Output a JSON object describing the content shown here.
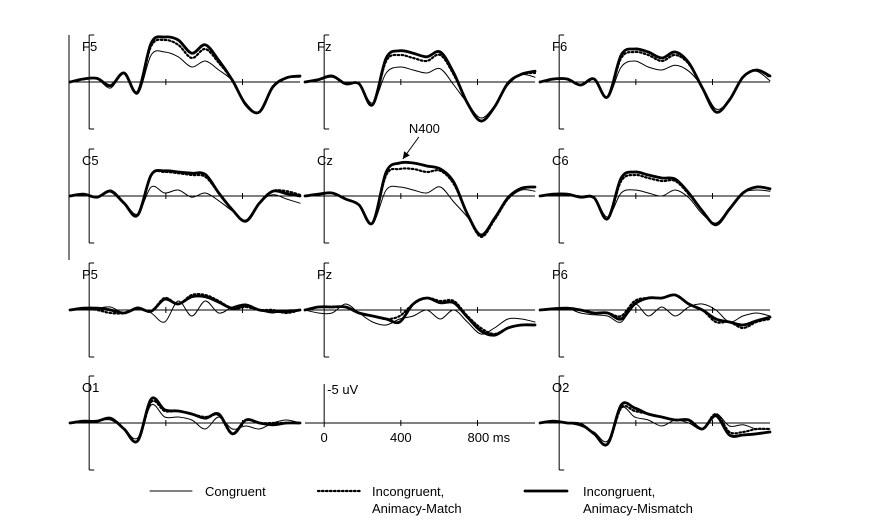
{
  "chart_data": {
    "type": "line",
    "x_unit": "ms",
    "x_range": [
      -100,
      1100
    ],
    "y_unit": "uV",
    "y_inverted": true,
    "y_scale_label": "-5 uV",
    "x_ticks": [
      {
        "value": 0,
        "label": "0"
      },
      {
        "value": 400,
        "label": "400"
      },
      {
        "value": 800,
        "label": "800 ms"
      }
    ],
    "annotation": {
      "electrode": "Cz",
      "label": "N400",
      "x": 400,
      "y": -5.5
    },
    "legend": {
      "placement": "bottom",
      "entries": [
        {
          "style": "thin",
          "label_lines": [
            "Congruent"
          ]
        },
        {
          "style": "dotted",
          "label_lines": [
            "Incongruent,",
            "Animacy-Match"
          ]
        },
        {
          "style": "thick",
          "label_lines": [
            "Incongruent,",
            "Animacy-Mismatch"
          ]
        }
      ]
    },
    "series_order": [
      "Congruent",
      "Incongruent, Animacy-Match",
      "Incongruent, Animacy-Mismatch"
    ],
    "panels": [
      {
        "label": "F5",
        "row": 0,
        "col": 0,
        "series": [
          [
            0,
            -0.4,
            -0.5,
            1,
            -1.5,
            2,
            -4.5,
            -5,
            -4.2,
            -2.5,
            -3.5,
            -2,
            -0.2,
            3.5,
            5,
            1,
            -0.6,
            -0.8
          ],
          [
            0,
            -0.5,
            -0.6,
            0.6,
            -1.5,
            1.7,
            -6,
            -7,
            -6.2,
            -4,
            -5.5,
            -3.2,
            -0.3,
            3.8,
            5,
            0.8,
            -0.7,
            -1
          ],
          [
            0,
            -0.5,
            -0.6,
            0.6,
            -1.5,
            1.7,
            -6.5,
            -7.5,
            -7,
            -4.8,
            -6.2,
            -3.6,
            -0.3,
            3.8,
            5,
            0.8,
            -0.7,
            -1
          ]
        ]
      },
      {
        "label": "Fz",
        "row": 0,
        "col": 1,
        "series": [
          [
            0,
            -0.3,
            -0.8,
            0.2,
            0.3,
            3.5,
            -1.5,
            -2.5,
            -2,
            -1.5,
            -2.2,
            0.5,
            3.5,
            6,
            4,
            0.5,
            -1.2,
            -0.8
          ],
          [
            0,
            -0.4,
            -1,
            0.3,
            0.3,
            3.8,
            -3.5,
            -4.5,
            -4,
            -3.5,
            -4.5,
            -1.2,
            3.5,
            6.5,
            4.2,
            0.2,
            -1.3,
            -1.5
          ],
          [
            0,
            -0.4,
            -1,
            0.3,
            0.3,
            3.8,
            -4,
            -5.2,
            -4.8,
            -4.2,
            -5,
            -1.5,
            3.5,
            6.5,
            4.2,
            0.2,
            -1.3,
            -1.8
          ]
        ]
      },
      {
        "label": "F6",
        "row": 0,
        "col": 2,
        "series": [
          [
            0,
            -0.4,
            -0.4,
            0.4,
            -0.5,
            2.5,
            -2.5,
            -3.5,
            -2.5,
            -2,
            -2.8,
            -1.8,
            0.8,
            4.5,
            3,
            -1,
            -1.8,
            -0.2
          ],
          [
            0,
            -0.5,
            -0.5,
            0.5,
            -0.5,
            2.5,
            -4,
            -5,
            -4.5,
            -3.5,
            -4.5,
            -3,
            1,
            5,
            3,
            -0.8,
            -2,
            -0.8
          ],
          [
            0,
            -0.5,
            -0.5,
            0.5,
            -0.5,
            2.5,
            -4.5,
            -5.5,
            -5,
            -4,
            -5,
            -3.2,
            1,
            5,
            3,
            -0.8,
            -2,
            -1
          ]
        ]
      },
      {
        "label": "C5",
        "row": 1,
        "col": 0,
        "series": [
          [
            0,
            -0.2,
            0.3,
            -1,
            1,
            3,
            -1.5,
            -0.5,
            -1,
            0.2,
            -0.5,
            0.8,
            2.5,
            4,
            1,
            -0.2,
            0.5,
            1.2
          ],
          [
            0,
            -0.3,
            0.2,
            -0.8,
            1.2,
            3.2,
            -3.5,
            -4,
            -3.8,
            -3.5,
            -3.2,
            -0.5,
            2.3,
            4.2,
            1.2,
            -0.8,
            -0.8,
            -0.2
          ],
          [
            0,
            -0.3,
            0.2,
            -0.8,
            1.2,
            3.2,
            -3.5,
            -4.2,
            -4,
            -3.8,
            -3.6,
            -0.5,
            2.3,
            4.2,
            1.2,
            -0.8,
            -0.4,
            0
          ]
        ]
      },
      {
        "label": "Cz",
        "row": 1,
        "col": 1,
        "series": [
          [
            0,
            -0.3,
            -0.5,
            0.5,
            1.5,
            4.5,
            -1,
            -1.5,
            -1,
            -0.5,
            -1.5,
            1,
            3.5,
            6.5,
            3.5,
            0.5,
            -1,
            -0.8
          ],
          [
            0,
            -0.3,
            -0.5,
            0.5,
            1.5,
            4.5,
            -3.5,
            -4.5,
            -4.5,
            -4,
            -4.2,
            -2,
            3,
            6.8,
            4,
            0.5,
            -1.2,
            -1.5
          ],
          [
            0,
            -0.3,
            -0.5,
            0.5,
            1.5,
            4.5,
            -4,
            -5.5,
            -5.5,
            -5,
            -4.5,
            -2.3,
            3,
            6.5,
            3.8,
            0.3,
            -1.3,
            -1.5
          ]
        ]
      },
      {
        "label": "C6",
        "row": 1,
        "col": 2,
        "series": [
          [
            0,
            -0.2,
            -0.2,
            0,
            0.2,
            3.5,
            -0.5,
            -1,
            -0.5,
            0,
            -1,
            0.3,
            3,
            4.5,
            2,
            -0.5,
            -1,
            -0.8
          ],
          [
            0,
            -0.3,
            -0.3,
            0.2,
            0.3,
            3.8,
            -2.5,
            -3.5,
            -3,
            -2.5,
            -2.5,
            -0.3,
            2.5,
            4.8,
            2.2,
            -0.5,
            -1.5,
            -1.2
          ],
          [
            0,
            -0.3,
            -0.3,
            0.2,
            0.3,
            3.8,
            -3,
            -4,
            -3.5,
            -3,
            -2.8,
            -0.5,
            2.5,
            4.8,
            2.2,
            -0.5,
            -1.5,
            -1.2
          ]
        ]
      },
      {
        "label": "P5",
        "row": 2,
        "col": 0,
        "series": [
          [
            0,
            -0.3,
            -0.3,
            -0.5,
            0.5,
            -0.5,
            0.5,
            2,
            -1.5,
            1,
            -1.5,
            0.5,
            -0.5,
            -1,
            0,
            0.5,
            0,
            0
          ],
          [
            0,
            -0.3,
            0,
            0.5,
            0.5,
            -0.3,
            0.2,
            -2,
            -1,
            -2.5,
            -2.5,
            -1.5,
            -0.2,
            -0.5,
            0,
            0,
            0.5,
            0
          ],
          [
            0,
            -0.3,
            -0.3,
            0,
            0.5,
            -0.3,
            0.2,
            -1.8,
            -1,
            -2.2,
            -2.2,
            -1.3,
            -0.3,
            -0.8,
            0,
            0.2,
            0.3,
            0
          ]
        ]
      },
      {
        "label": "Pz",
        "row": 2,
        "col": 1,
        "series": [
          [
            0,
            0.5,
            0.5,
            -1,
            0.5,
            2,
            2.5,
            1.5,
            1,
            0,
            1.5,
            0,
            2,
            4,
            3,
            1.5,
            1.5,
            2
          ],
          [
            0,
            -0.5,
            -0.5,
            -0.5,
            0.5,
            1,
            1.5,
            1,
            -1,
            -2,
            -1.5,
            -1.5,
            1,
            3,
            4,
            3,
            2.5,
            2.5
          ],
          [
            0,
            -0.5,
            -0.5,
            -0.5,
            0.5,
            1,
            1.5,
            2,
            -1,
            -2,
            -1.2,
            -1.2,
            1.2,
            3.5,
            4.2,
            3,
            2.5,
            2.5
          ]
        ]
      },
      {
        "label": "P6",
        "row": 2,
        "col": 2,
        "series": [
          [
            0,
            -0.2,
            -0.3,
            0.5,
            0.8,
            1,
            2,
            -1,
            1,
            -0.5,
            1,
            -0.5,
            -1,
            0,
            2,
            1,
            0.5,
            1
          ],
          [
            0,
            -0.2,
            -0.3,
            0,
            0.5,
            0.5,
            1,
            -1.5,
            -2,
            -2,
            -2.5,
            -1,
            0,
            2,
            2,
            3,
            2,
            1.5
          ],
          [
            0,
            -0.2,
            -0.3,
            0,
            0.5,
            0.5,
            1.5,
            -1,
            -2,
            -2,
            -2.5,
            -1,
            0,
            1.5,
            2,
            2.5,
            1.8,
            1.2
          ]
        ]
      },
      {
        "label": "O1",
        "row": 3,
        "col": 0,
        "series": [
          [
            0,
            -0.3,
            -0.3,
            -0.5,
            1,
            2.5,
            -3,
            -1,
            -1,
            -0.5,
            1,
            -1,
            1,
            0.5,
            1,
            0,
            -0.5,
            0
          ],
          [
            0,
            -0.3,
            -0.3,
            -0.8,
            1,
            3,
            -3.5,
            -2,
            -2,
            -1.5,
            -1,
            -1.3,
            1.8,
            -0.5,
            0,
            0,
            0,
            0
          ],
          [
            0,
            -0.3,
            -0.3,
            -0.8,
            1,
            3,
            -4,
            -2.2,
            -2,
            -1.5,
            -0.8,
            -1.5,
            1.8,
            -0.5,
            0,
            0.3,
            0,
            0
          ]
        ]
      },
      {
        "label": "O2",
        "row": 3,
        "col": 2,
        "series": [
          [
            0,
            -0.3,
            0,
            0.5,
            1.5,
            3,
            -2.5,
            -1,
            -0.5,
            0.5,
            -0.5,
            0,
            1,
            -1.5,
            0.5,
            0.3,
            1,
            1
          ],
          [
            0,
            -0.3,
            0,
            0.2,
            1.8,
            3.5,
            -2.5,
            -2,
            -1.5,
            -1,
            -0.5,
            -0.5,
            1,
            -1.5,
            1.5,
            1.5,
            1,
            1
          ],
          [
            0,
            -0.3,
            0,
            0.2,
            1.8,
            3.5,
            -3,
            -2.5,
            -1.5,
            -1,
            -0.5,
            -0.5,
            1,
            -1.2,
            2,
            2,
            1.8,
            1.5
          ]
        ]
      }
    ]
  }
}
